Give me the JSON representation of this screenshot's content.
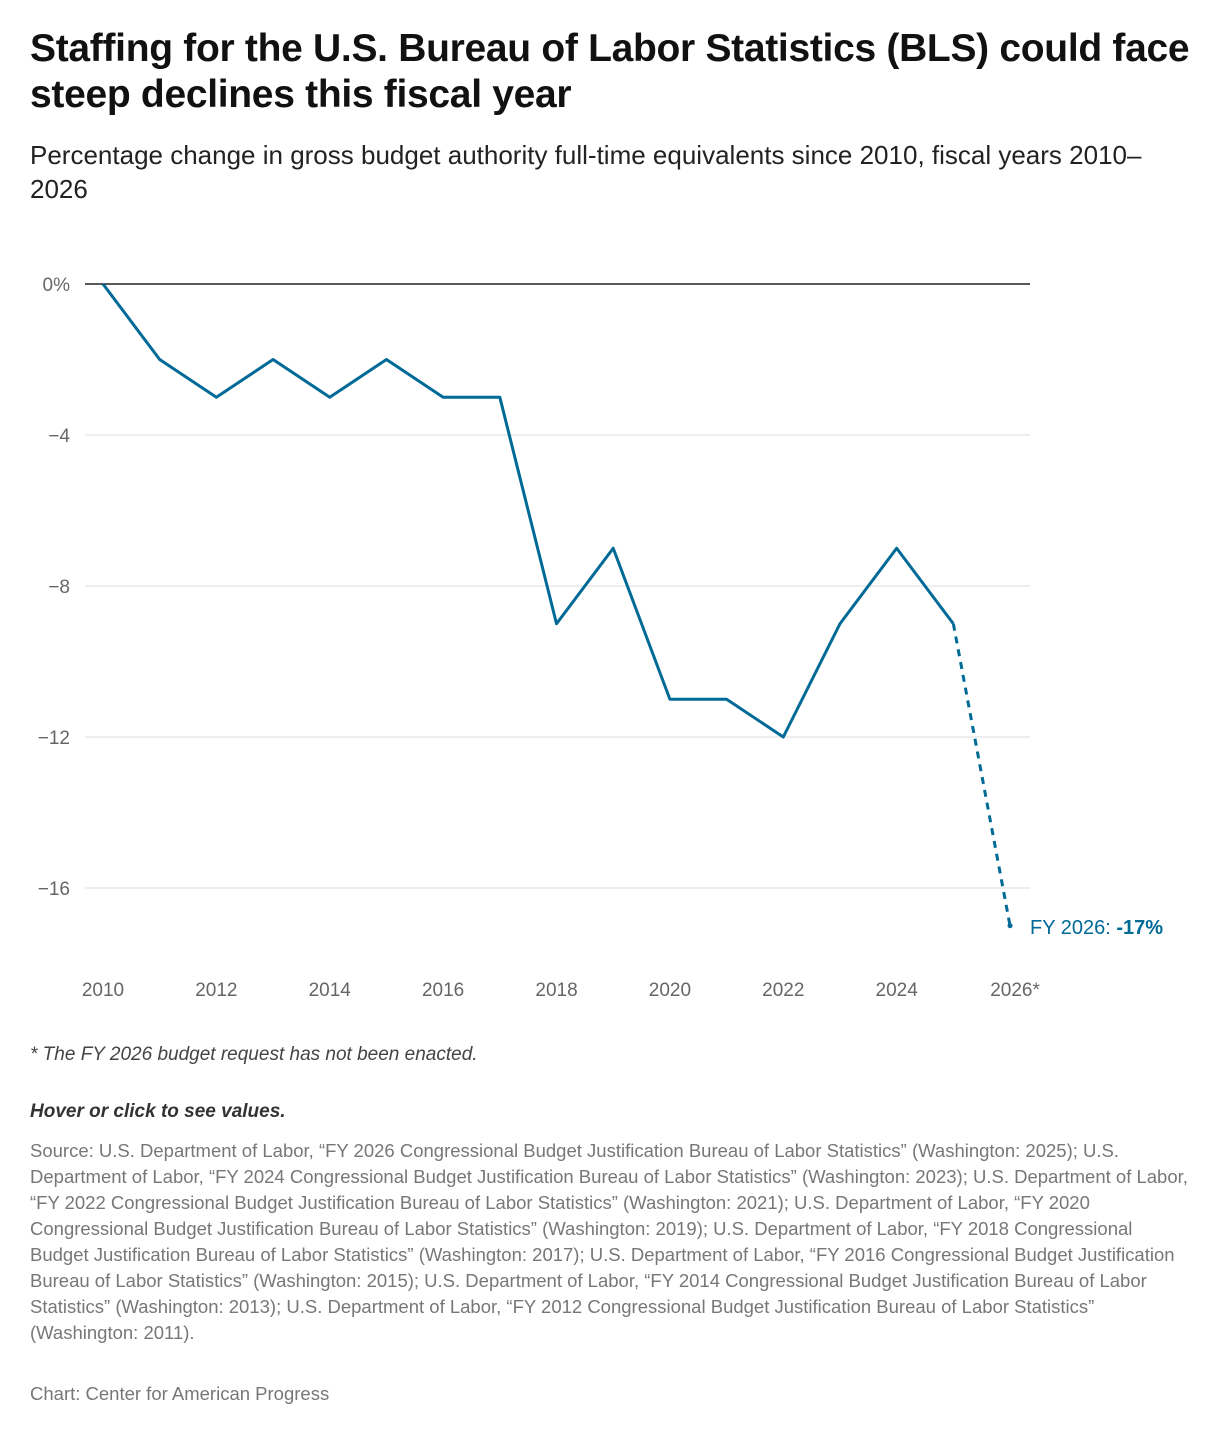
{
  "title": "Staffing for the U.S. Bureau of Labor Statistics (BLS) could face steep declines this fiscal year",
  "subtitle": "Percentage change in gross budget authority full-time equivalents since 2010, fiscal years 2010–2026",
  "chart_data": {
    "type": "line",
    "x": [
      2010,
      2011,
      2012,
      2013,
      2014,
      2015,
      2016,
      2017,
      2018,
      2019,
      2020,
      2021,
      2022,
      2023,
      2024,
      2025,
      2026
    ],
    "series": [
      {
        "values": [
          0,
          -2,
          -3,
          -2,
          -3,
          -2,
          -3,
          -3,
          -9,
          -7,
          -11,
          -11,
          -12,
          -9,
          -7,
          -9,
          -17
        ]
      }
    ],
    "projected_from": 2025,
    "ylim": [
      -17,
      0
    ],
    "y_ticks": [
      0,
      -4,
      -8,
      -12,
      -16
    ],
    "y_tick_labels": [
      "0%",
      "−4",
      "−8",
      "−12",
      "−16"
    ],
    "x_ticks": [
      2010,
      2012,
      2014,
      2016,
      2018,
      2020,
      2022,
      2024,
      2026
    ],
    "x_tick_labels": [
      "2010",
      "2012",
      "2014",
      "2016",
      "2018",
      "2020",
      "2022",
      "2024",
      "2026*"
    ],
    "annotation": {
      "prefix": "FY 2026: ",
      "value": "-17%"
    },
    "grid": true,
    "color": "#006a96"
  },
  "footnote": "* The FY 2026 budget request has not been enacted.",
  "hover_hint": "Hover or click to see values.",
  "source": "Source: U.S. Department of Labor, “FY 2026 Congressional Budget Justification Bureau of Labor Statistics” (Washington: 2025); U.S. Department of Labor, “FY 2024 Congressional Budget Justification Bureau of Labor Statistics” (Washington: 2023); U.S. Department of Labor, “FY 2022 Congressional Budget Justification Bureau of Labor Statistics” (Washington: 2021); U.S. Department of Labor, “FY 2020 Congressional Budget Justification Bureau of Labor Statistics” (Washington: 2019); U.S. Department of Labor, “FY 2018 Congressional Budget Justification Bureau of Labor Statistics” (Washington: 2017); U.S. Department of Labor, “FY 2016 Congressional Budget Justification Bureau of Labor Statistics” (Washington: 2015); U.S. Department of Labor, “FY 2014 Congressional Budget Justification Bureau of Labor Statistics” (Washington: 2013); U.S. Department of Labor, “FY 2012 Congressional Budget Justification Bureau of Labor Statistics” (Washington: 2011).",
  "credit": "Chart: Center for American Progress"
}
